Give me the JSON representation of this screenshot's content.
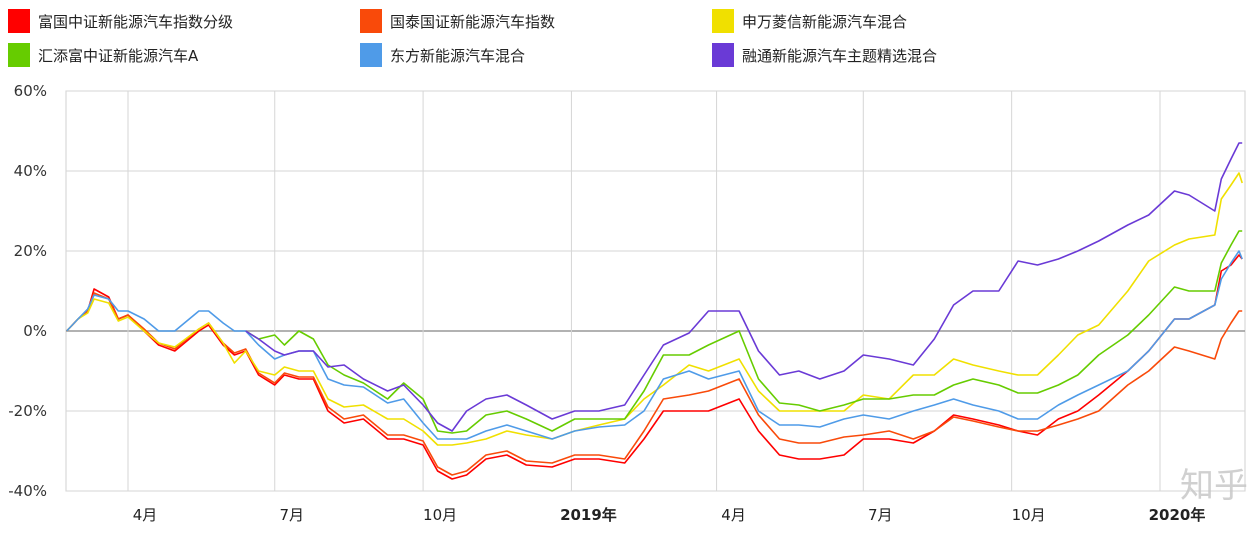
{
  "chart_data": {
    "type": "line",
    "title": "",
    "xlabel": "",
    "ylabel": "",
    "ylim": [
      -40,
      60
    ],
    "yticks": [
      "60%",
      "40%",
      "20%",
      "0%",
      "-20%",
      "-40%"
    ],
    "ytick_values": [
      60,
      40,
      20,
      0,
      -20,
      -40
    ],
    "xlim": [
      "2018-02-22",
      "2020-02-21"
    ],
    "xticks": [
      {
        "date": "2018-04-01",
        "label": "4月",
        "major": false
      },
      {
        "date": "2018-07-01",
        "label": "7月",
        "major": false
      },
      {
        "date": "2018-10-01",
        "label": "10月",
        "major": false
      },
      {
        "date": "2019-01-01",
        "label": "2019年",
        "major": true
      },
      {
        "date": "2019-04-01",
        "label": "4月",
        "major": false
      },
      {
        "date": "2019-07-01",
        "label": "7月",
        "major": false
      },
      {
        "date": "2019-10-01",
        "label": "10月",
        "major": false
      },
      {
        "date": "2020-01-01",
        "label": "2020年",
        "major": true
      }
    ],
    "grid": true,
    "legend_position": "top",
    "x": [
      "2018-02-22",
      "2018-03-01",
      "2018-03-07",
      "2018-03-11",
      "2018-03-20",
      "2018-03-26",
      "2018-04-01",
      "2018-04-11",
      "2018-04-20",
      "2018-04-30",
      "2018-05-15",
      "2018-05-21",
      "2018-05-30",
      "2018-06-06",
      "2018-06-13",
      "2018-06-21",
      "2018-07-01",
      "2018-07-07",
      "2018-07-16",
      "2018-07-25",
      "2018-08-03",
      "2018-08-13",
      "2018-08-25",
      "2018-09-09",
      "2018-09-19",
      "2018-10-01",
      "2018-10-10",
      "2018-10-19",
      "2018-10-28",
      "2018-11-09",
      "2018-11-22",
      "2018-12-04",
      "2018-12-20",
      "2019-01-03",
      "2019-01-18",
      "2019-02-03",
      "2019-02-15",
      "2019-02-27",
      "2019-03-15",
      "2019-03-27",
      "2019-04-15",
      "2019-04-27",
      "2019-05-10",
      "2019-05-22",
      "2019-06-04",
      "2019-06-19",
      "2019-07-01",
      "2019-07-17",
      "2019-08-01",
      "2019-08-14",
      "2019-08-26",
      "2019-09-07",
      "2019-09-23",
      "2019-10-05",
      "2019-10-17",
      "2019-10-30",
      "2019-11-11",
      "2019-11-24",
      "2019-12-12",
      "2019-12-25",
      "2020-01-10",
      "2020-01-19",
      "2020-02-04",
      "2020-02-08",
      "2020-02-14",
      "2020-02-19",
      "2020-02-21"
    ],
    "series": [
      {
        "name": "富国中证新能源汽车指数分级",
        "color": "#ff0000",
        "values": [
          0,
          3,
          5,
          10.5,
          8.5,
          3,
          4,
          0,
          -3.5,
          -5,
          0,
          1.5,
          -3.5,
          -6,
          -5,
          -11,
          -13.5,
          -11,
          -12,
          -12,
          -20,
          -23,
          -22,
          -27,
          -27,
          -28.5,
          -35,
          -37,
          -36,
          -32,
          -31,
          -33.5,
          -34,
          -32,
          -32,
          -33,
          -27,
          -20,
          -20,
          -20,
          -17,
          -25,
          -31,
          -32,
          -32,
          -31,
          -27,
          -27,
          -28,
          -25,
          -21,
          -22,
          -23.5,
          -25,
          -26,
          -22,
          -20,
          -16,
          -10,
          -5,
          3,
          3,
          6.5,
          15,
          16.5,
          19,
          18
        ]
      },
      {
        "name": "国泰国证新能源汽车指数",
        "color": "#f94a0a",
        "values": [
          0,
          3,
          5,
          9.5,
          8,
          3,
          4,
          0.5,
          -3,
          -4.5,
          0.5,
          2,
          -3,
          -5.5,
          -4.5,
          -10.5,
          -13,
          -10.5,
          -11.5,
          -11.5,
          -19,
          -22,
          -21,
          -26,
          -26,
          -27.5,
          -34,
          -36,
          -35,
          -31,
          -30,
          -32.5,
          -33,
          -31,
          -31,
          -32,
          -25,
          -17,
          -16,
          -15,
          -12,
          -21,
          -27,
          -28,
          -28,
          -26.5,
          -26,
          -25,
          -27,
          -25,
          -21.5,
          -22.5,
          -24,
          -25,
          -25,
          -23.5,
          -22,
          -20,
          -13.5,
          -10,
          -4,
          -5,
          -7,
          -2,
          2,
          5,
          5
        ]
      },
      {
        "name": "申万菱信新能源汽车混合",
        "color": "#f0e000",
        "values": [
          0,
          3,
          4.5,
          8,
          7,
          2.5,
          3.5,
          0,
          -3,
          -4,
          0.5,
          2,
          -3,
          -8,
          -5,
          -10,
          -11,
          -9,
          -10,
          -10,
          -17,
          -19,
          -18.5,
          -22,
          -22,
          -25,
          -28.5,
          -28.5,
          -28,
          -27,
          -25,
          -26,
          -27,
          -25,
          -23.5,
          -22,
          -17,
          -13.5,
          -8.5,
          -10,
          -7,
          -15,
          -20,
          -20,
          -20,
          -20,
          -16,
          -17,
          -11,
          -11,
          -7,
          -8.5,
          -10,
          -11,
          -11,
          -6,
          -1,
          1.5,
          10,
          17.5,
          21.5,
          23,
          24,
          33,
          36.5,
          39.5,
          37
        ]
      },
      {
        "name": "汇添富中证新能源汽车A",
        "color": "#66cc00",
        "values": [
          null,
          null,
          null,
          null,
          null,
          null,
          null,
          null,
          null,
          null,
          null,
          null,
          null,
          null,
          0,
          -2,
          -1,
          -3.5,
          0,
          -2,
          -8.5,
          -11,
          -13,
          -17,
          -13,
          -17,
          -25,
          -25.5,
          -25,
          -21,
          -20,
          -22,
          -25,
          -22,
          -22,
          -22,
          -15,
          -6,
          -6,
          -3.5,
          0,
          -12,
          -18,
          -18.5,
          -20,
          -18.5,
          -17,
          -17,
          -16,
          -16,
          -13.5,
          -12,
          -13.5,
          -15.5,
          -15.5,
          -13.5,
          -11,
          -6,
          -1,
          4,
          11,
          10,
          10,
          17,
          21.5,
          25,
          25
        ]
      },
      {
        "name": "东方新能源汽车混合",
        "color": "#4f9be8",
        "values": [
          0,
          3,
          5.5,
          9,
          8,
          5,
          5,
          3,
          0,
          0,
          5,
          5,
          2,
          0,
          0,
          -3.5,
          -7,
          -6,
          -5,
          -5,
          -12,
          -13.5,
          -14,
          -18,
          -17,
          -23,
          -27,
          -27,
          -27,
          -25,
          -23.5,
          -25,
          -27,
          -25,
          -24,
          -23.5,
          -20,
          -12,
          -10,
          -12,
          -10,
          -20,
          -23.5,
          -23.5,
          -24,
          -22,
          -21,
          -22,
          -20,
          -18.5,
          -17,
          -18.5,
          -20,
          -22,
          -22,
          -18.5,
          -16,
          -13.5,
          -10,
          -5,
          3,
          3,
          6.5,
          13,
          17,
          20,
          18
        ]
      },
      {
        "name": "融通新能源汽车主题精选混合",
        "color": "#6a3ad6",
        "values": [
          null,
          null,
          null,
          null,
          null,
          null,
          null,
          null,
          null,
          null,
          null,
          null,
          null,
          null,
          0,
          -2,
          -5,
          -6,
          -5,
          -5,
          -9,
          -8.5,
          -12,
          -15,
          -13.5,
          -18.5,
          -23,
          -25,
          -20,
          -17,
          -16,
          -18.5,
          -22,
          -20,
          -20,
          -18.5,
          -11,
          -3.5,
          -0.5,
          5,
          5,
          -5,
          -11,
          -10,
          -12,
          -10,
          -6,
          -7,
          -8.5,
          -2,
          6.5,
          10,
          10,
          17.5,
          16.5,
          18,
          20,
          22.5,
          26.5,
          29,
          35,
          34,
          30,
          38,
          43,
          47,
          47
        ]
      }
    ]
  },
  "watermark": "知乎 @知所寻"
}
